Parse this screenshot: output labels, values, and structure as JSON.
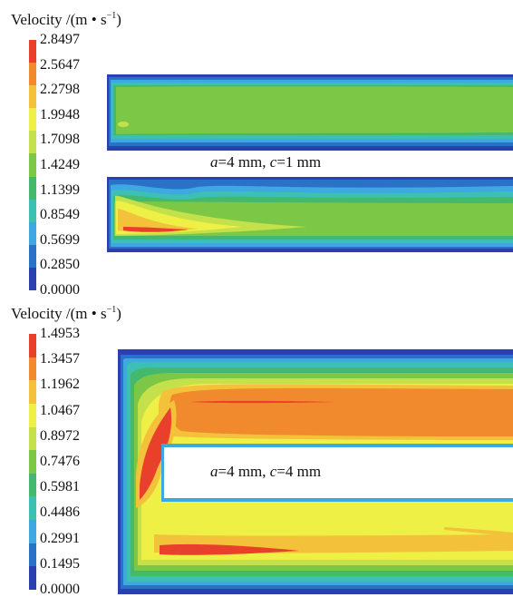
{
  "panels": [
    {
      "id": "top",
      "colorbar_title": {
        "prefix": "Velocity /(m • s",
        "exponent": "−1",
        "suffix": ")"
      },
      "colorbar_labels": [
        "2.8497",
        "2.5647",
        "2.2798",
        "1.9948",
        "1.7098",
        "1.4249",
        "1.1399",
        "0.8549",
        "0.5699",
        "0.2850",
        "0.0000"
      ],
      "colorbar_colors": [
        "#e8402a",
        "#f08a2c",
        "#f3c23a",
        "#eef046",
        "#c4e04a",
        "#7cc846",
        "#44b86c",
        "#3cc0b4",
        "#3fa8e0",
        "#2a72c8",
        "#2a40b0"
      ],
      "value_range": [
        0.0,
        2.8497
      ],
      "annotation": {
        "a_var": "a",
        "a_text": "=4 mm, ",
        "c_var": "c",
        "c_text": "=1 mm"
      }
    },
    {
      "id": "bottom",
      "colorbar_title": {
        "prefix": "Velocity /(m • s",
        "exponent": "−1",
        "suffix": ")"
      },
      "colorbar_labels": [
        "1.4953",
        "1.3457",
        "1.1962",
        "1.0467",
        "0.8972",
        "0.7476",
        "0.5981",
        "0.4486",
        "0.2991",
        "0.1495",
        "0.0000"
      ],
      "colorbar_colors": [
        "#e8402a",
        "#f08a2c",
        "#f3c23a",
        "#eef046",
        "#c4e04a",
        "#7cc846",
        "#44b86c",
        "#3cc0b4",
        "#3fa8e0",
        "#2a72c8",
        "#2a40b0"
      ],
      "value_range": [
        0.0,
        1.4953
      ],
      "annotation": {
        "a_var": "a",
        "a_text": "=4 mm, ",
        "c_var": "c",
        "c_text": "=4 mm"
      }
    }
  ]
}
